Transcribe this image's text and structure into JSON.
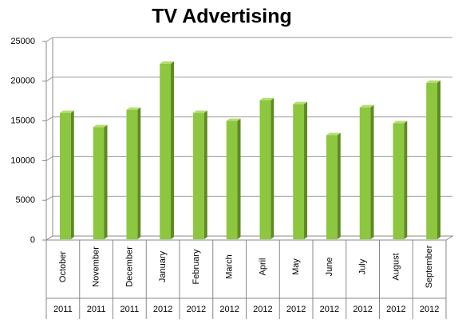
{
  "chart_data": {
    "type": "bar",
    "title": "TV Advertising",
    "categories": [
      "October",
      "November",
      "December",
      "January",
      "February",
      "March",
      "April",
      "May",
      "June",
      "July",
      "August",
      "September"
    ],
    "category_groups": [
      "2011",
      "2011",
      "2011",
      "2012",
      "2012",
      "2012",
      "2012",
      "2012",
      "2012",
      "2012",
      "2012",
      "2012"
    ],
    "values": [
      15800,
      14000,
      16200,
      22000,
      15800,
      14800,
      17400,
      16900,
      13000,
      16500,
      14500,
      19600
    ],
    "color": "#8dc63f",
    "ylim": [
      0,
      25000
    ],
    "yticks": [
      0,
      5000,
      10000,
      15000,
      20000,
      25000
    ],
    "grid": true
  }
}
